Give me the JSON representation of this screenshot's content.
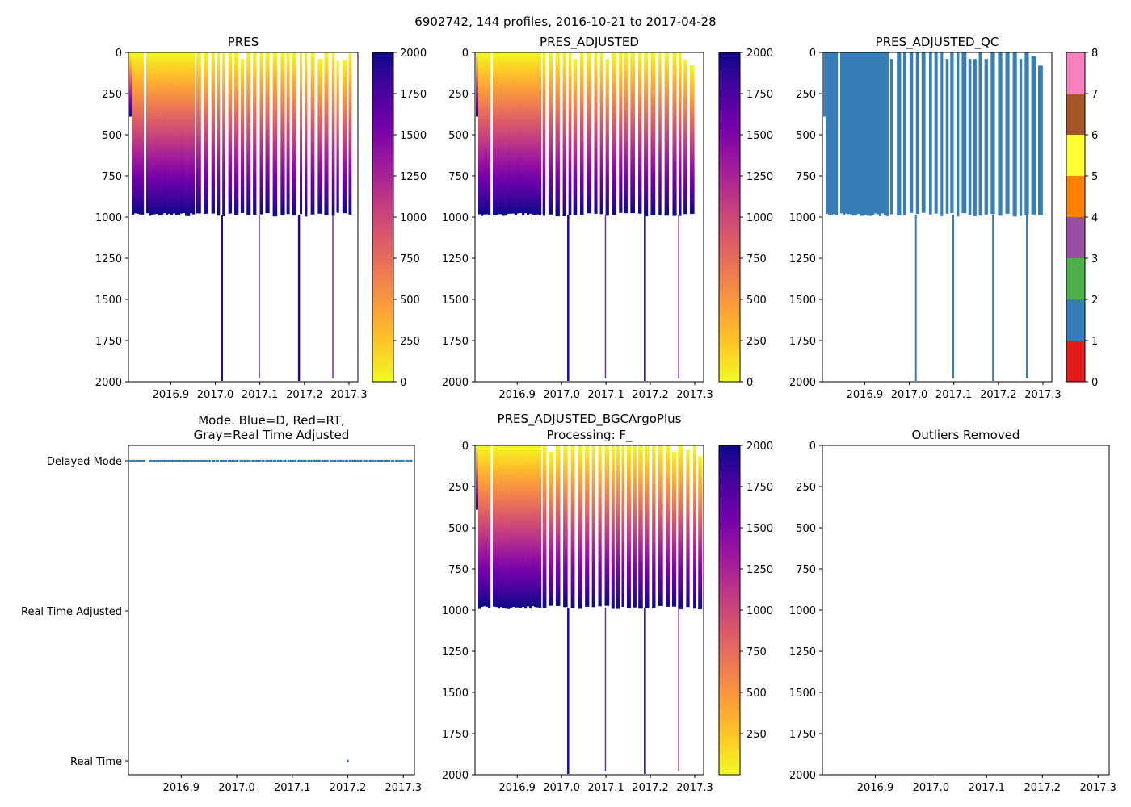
{
  "figure": {
    "suptitle": "6902742, 144 profiles, 2016-10-21 to 2017-04-28"
  },
  "colors": {
    "plasma_reversed": [
      "#f0f921",
      "#fdca26",
      "#fb9f3a",
      "#ed7953",
      "#d8576b",
      "#bd3786",
      "#9c179e",
      "#7201a8",
      "#46039f",
      "#0d0887"
    ],
    "qc": [
      "#e41a1c",
      "#377eb8",
      "#4daf4a",
      "#984ea3",
      "#ff7f00",
      "#ffff33",
      "#a65628",
      "#f781bf",
      "#999999"
    ],
    "mode_delayed": "#1f77b4",
    "axis": "#000000"
  },
  "chart_data": [
    {
      "id": "pres",
      "type": "heatmap",
      "title": "PRES",
      "xlim": [
        2016.805,
        2017.32
      ],
      "ylim": [
        2000,
        0
      ],
      "xticks": [
        "2016.9",
        "2017.0",
        "2017.1",
        "2017.2",
        "2017.3"
      ],
      "yticks": [
        "0",
        "250",
        "500",
        "750",
        "1000",
        "1250",
        "1500",
        "1750",
        "2000"
      ],
      "colorbar": {
        "kind": "continuous",
        "range": [
          0,
          2000
        ],
        "ticks": [
          "0",
          "250",
          "500",
          "750",
          "1000",
          "1250",
          "1500",
          "1750",
          "2000"
        ]
      },
      "profile_depth_typical": 985,
      "deep_profile_times": [
        2017.013,
        2017.097,
        2017.186,
        2017.262
      ],
      "deep_profile_depth": 2000,
      "missing_gaps": [
        [
          2016.836,
          2016.842
        ]
      ]
    },
    {
      "id": "pres_adjusted",
      "type": "heatmap",
      "title": "PRES_ADJUSTED",
      "xlim": [
        2016.805,
        2017.32
      ],
      "ylim": [
        2000,
        0
      ],
      "xticks": [
        "2016.9",
        "2017.0",
        "2017.1",
        "2017.2",
        "2017.3"
      ],
      "yticks": [
        "0",
        "250",
        "500",
        "750",
        "1000",
        "1250",
        "1500",
        "1750",
        "2000"
      ],
      "colorbar": {
        "kind": "continuous",
        "range": [
          0,
          2000
        ],
        "ticks": [
          "0",
          "250",
          "500",
          "750",
          "1000",
          "1250",
          "1500",
          "1750",
          "2000"
        ]
      },
      "profile_depth_typical": 985,
      "deep_profile_times": [
        2017.013,
        2017.097,
        2017.186,
        2017.262
      ],
      "deep_profile_depth": 2000,
      "missing_gaps": [
        [
          2016.836,
          2016.842
        ]
      ]
    },
    {
      "id": "pres_adjusted_qc",
      "type": "heatmap",
      "title": "PRES_ADJUSTED_QC",
      "xlim": [
        2016.805,
        2017.32
      ],
      "ylim": [
        2000,
        0
      ],
      "xticks": [
        "2016.9",
        "2017.0",
        "2017.1",
        "2017.2",
        "2017.3"
      ],
      "yticks": [
        "0",
        "250",
        "500",
        "750",
        "1000",
        "1250",
        "1500",
        "1750",
        "2000"
      ],
      "colorbar": {
        "kind": "categorical",
        "range": [
          0,
          8
        ],
        "ticks": [
          "0",
          "1",
          "2",
          "3",
          "4",
          "5",
          "6",
          "7",
          "8"
        ]
      },
      "qc_value": 1,
      "profile_depth_typical": 985,
      "deep_profile_times": [
        2017.013,
        2017.097,
        2017.186,
        2017.262
      ],
      "deep_profile_depth": 2000,
      "missing_gaps": [
        [
          2016.836,
          2016.842
        ]
      ]
    },
    {
      "id": "mode",
      "type": "scatter",
      "title": "Mode. Blue=D, Red=RT,\nGray=Real Time Adjusted",
      "xlim": [
        2016.805,
        2017.32
      ],
      "xticks": [
        "2016.9",
        "2017.0",
        "2017.1",
        "2017.2",
        "2017.3"
      ],
      "yticks": [
        "Delayed Mode",
        "Real Time Adjusted",
        "Real Time"
      ],
      "series": [
        {
          "name": "Delayed Mode",
          "level": 2,
          "x_range": [
            2016.805,
            2017.315
          ],
          "count": 143
        },
        {
          "name": "Real Time",
          "level": 0,
          "x": [
            2017.2
          ]
        }
      ]
    },
    {
      "id": "bgc",
      "type": "heatmap",
      "title": "PRES_ADJUSTED_BGCArgoPlus\nProcessing: F_",
      "xlim": [
        2016.805,
        2017.32
      ],
      "ylim": [
        2000,
        0
      ],
      "xticks": [
        "2016.9",
        "2017.0",
        "2017.1",
        "2017.2",
        "2017.3"
      ],
      "yticks": [
        "0",
        "250",
        "500",
        "750",
        "1000",
        "1250",
        "1500",
        "1750",
        "2000"
      ],
      "colorbar": {
        "kind": "continuous",
        "range": [
          0,
          2000
        ],
        "ticks": [
          "250",
          "500",
          "750",
          "1000",
          "1250",
          "1500",
          "1750",
          "2000"
        ]
      },
      "profile_depth_typical": 985,
      "deep_profile_times": [
        2017.013,
        2017.097,
        2017.186,
        2017.262
      ],
      "deep_profile_depth": 2000,
      "missing_gaps": [
        [
          2016.836,
          2016.842
        ]
      ]
    },
    {
      "id": "outliers",
      "type": "heatmap",
      "title": "Outliers Removed",
      "xlim": [
        2016.805,
        2017.32
      ],
      "ylim": [
        2000,
        0
      ],
      "xticks": [
        "2016.9",
        "2017.0",
        "2017.1",
        "2017.2",
        "2017.3"
      ],
      "yticks": [
        "0",
        "250",
        "500",
        "750",
        "1000",
        "1250",
        "1500",
        "1750",
        "2000"
      ],
      "empty": true
    }
  ]
}
